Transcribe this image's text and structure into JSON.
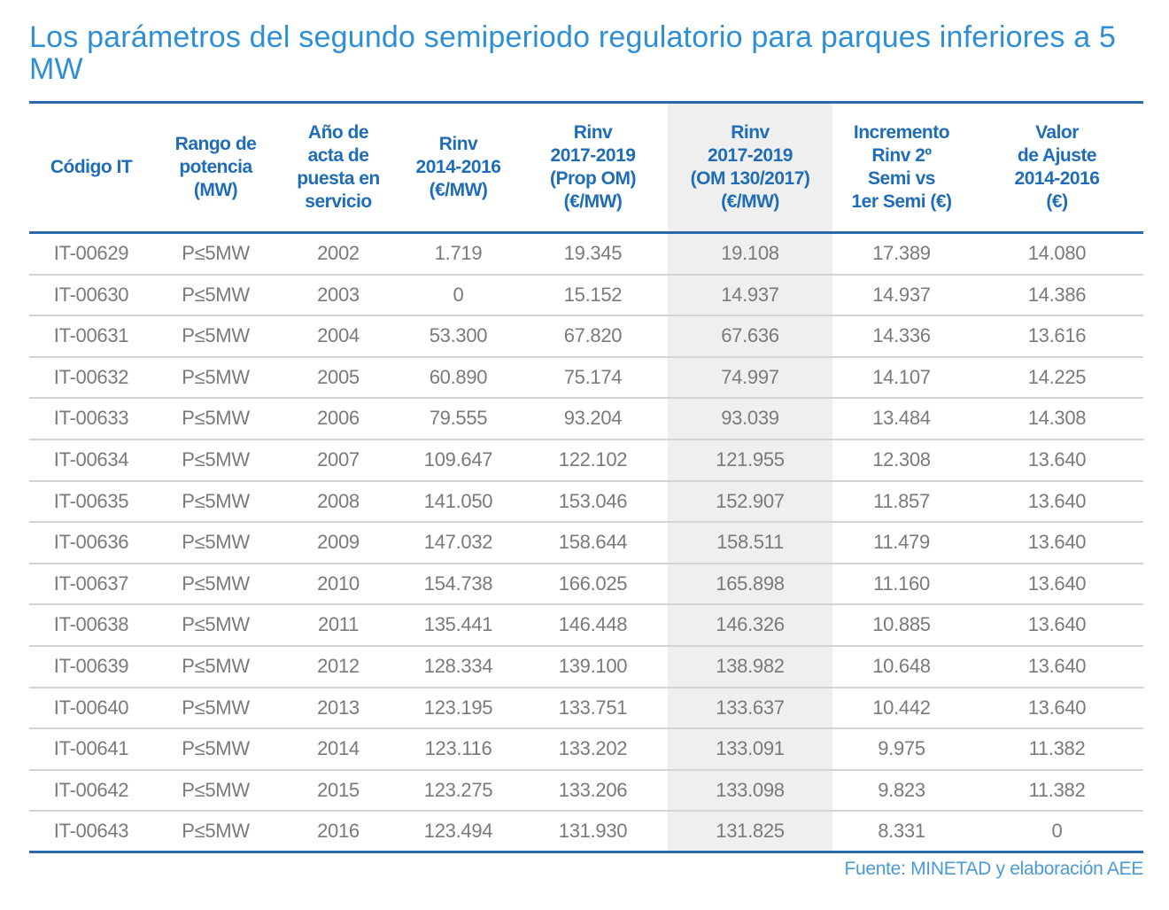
{
  "title": "Los parámetros del segundo semiperiodo regulatorio para parques inferiores a 5 MW",
  "colors": {
    "title": "#2e8fd6",
    "header_text": "#1f6db8",
    "rule": "#2a6aac",
    "highlight_column": "#efefef",
    "body_text": "#7a7a7a"
  },
  "highlighted_column_index": 5,
  "table": {
    "headers": [
      "Código IT",
      "Rango de\npotencia\n(MW)",
      "Año de\nacta de\npuesta en\nservicio",
      "Rinv\n2014-2016\n(€/MW)",
      "Rinv\n2017-2019\n(Prop OM)\n(€/MW)",
      "Rinv\n2017-2019\n(OM 130/2017)\n(€/MW)",
      "Incremento\nRinv 2º\nSemi vs\n1er Semi (€)",
      "Valor\nde Ajuste\n2014-2016\n(€)"
    ],
    "rows": [
      [
        "IT-00629",
        "P≤5MW",
        "2002",
        "1.719",
        "19.345",
        "19.108",
        "17.389",
        "14.080"
      ],
      [
        "IT-00630",
        "P≤5MW",
        "2003",
        "0",
        "15.152",
        "14.937",
        "14.937",
        "14.386"
      ],
      [
        "IT-00631",
        "P≤5MW",
        "2004",
        "53.300",
        "67.820",
        "67.636",
        "14.336",
        "13.616"
      ],
      [
        "IT-00632",
        "P≤5MW",
        "2005",
        "60.890",
        "75.174",
        "74.997",
        "14.107",
        "14.225"
      ],
      [
        "IT-00633",
        "P≤5MW",
        "2006",
        "79.555",
        "93.204",
        "93.039",
        "13.484",
        "14.308"
      ],
      [
        "IT-00634",
        "P≤5MW",
        "2007",
        "109.647",
        "122.102",
        "121.955",
        "12.308",
        "13.640"
      ],
      [
        "IT-00635",
        "P≤5MW",
        "2008",
        "141.050",
        "153.046",
        "152.907",
        "11.857",
        "13.640"
      ],
      [
        "IT-00636",
        "P≤5MW",
        "2009",
        "147.032",
        "158.644",
        "158.511",
        "11.479",
        "13.640"
      ],
      [
        "IT-00637",
        "P≤5MW",
        "2010",
        "154.738",
        "166.025",
        "165.898",
        "11.160",
        "13.640"
      ],
      [
        "IT-00638",
        "P≤5MW",
        "2011",
        "135.441",
        "146.448",
        "146.326",
        "10.885",
        "13.640"
      ],
      [
        "IT-00639",
        "P≤5MW",
        "2012",
        "128.334",
        "139.100",
        "138.982",
        "10.648",
        "13.640"
      ],
      [
        "IT-00640",
        "P≤5MW",
        "2013",
        "123.195",
        "133.751",
        "133.637",
        "10.442",
        "13.640"
      ],
      [
        "IT-00641",
        "P≤5MW",
        "2014",
        "123.116",
        "133.202",
        "133.091",
        "9.975",
        "11.382"
      ],
      [
        "IT-00642",
        "P≤5MW",
        "2015",
        "123.275",
        "133.206",
        "133.098",
        "9.823",
        "11.382"
      ],
      [
        "IT-00643",
        "P≤5MW",
        "2016",
        "123.494",
        "131.930",
        "131.825",
        "8.331",
        "0"
      ]
    ]
  },
  "source": "Fuente: MINETAD y elaboración AEE"
}
